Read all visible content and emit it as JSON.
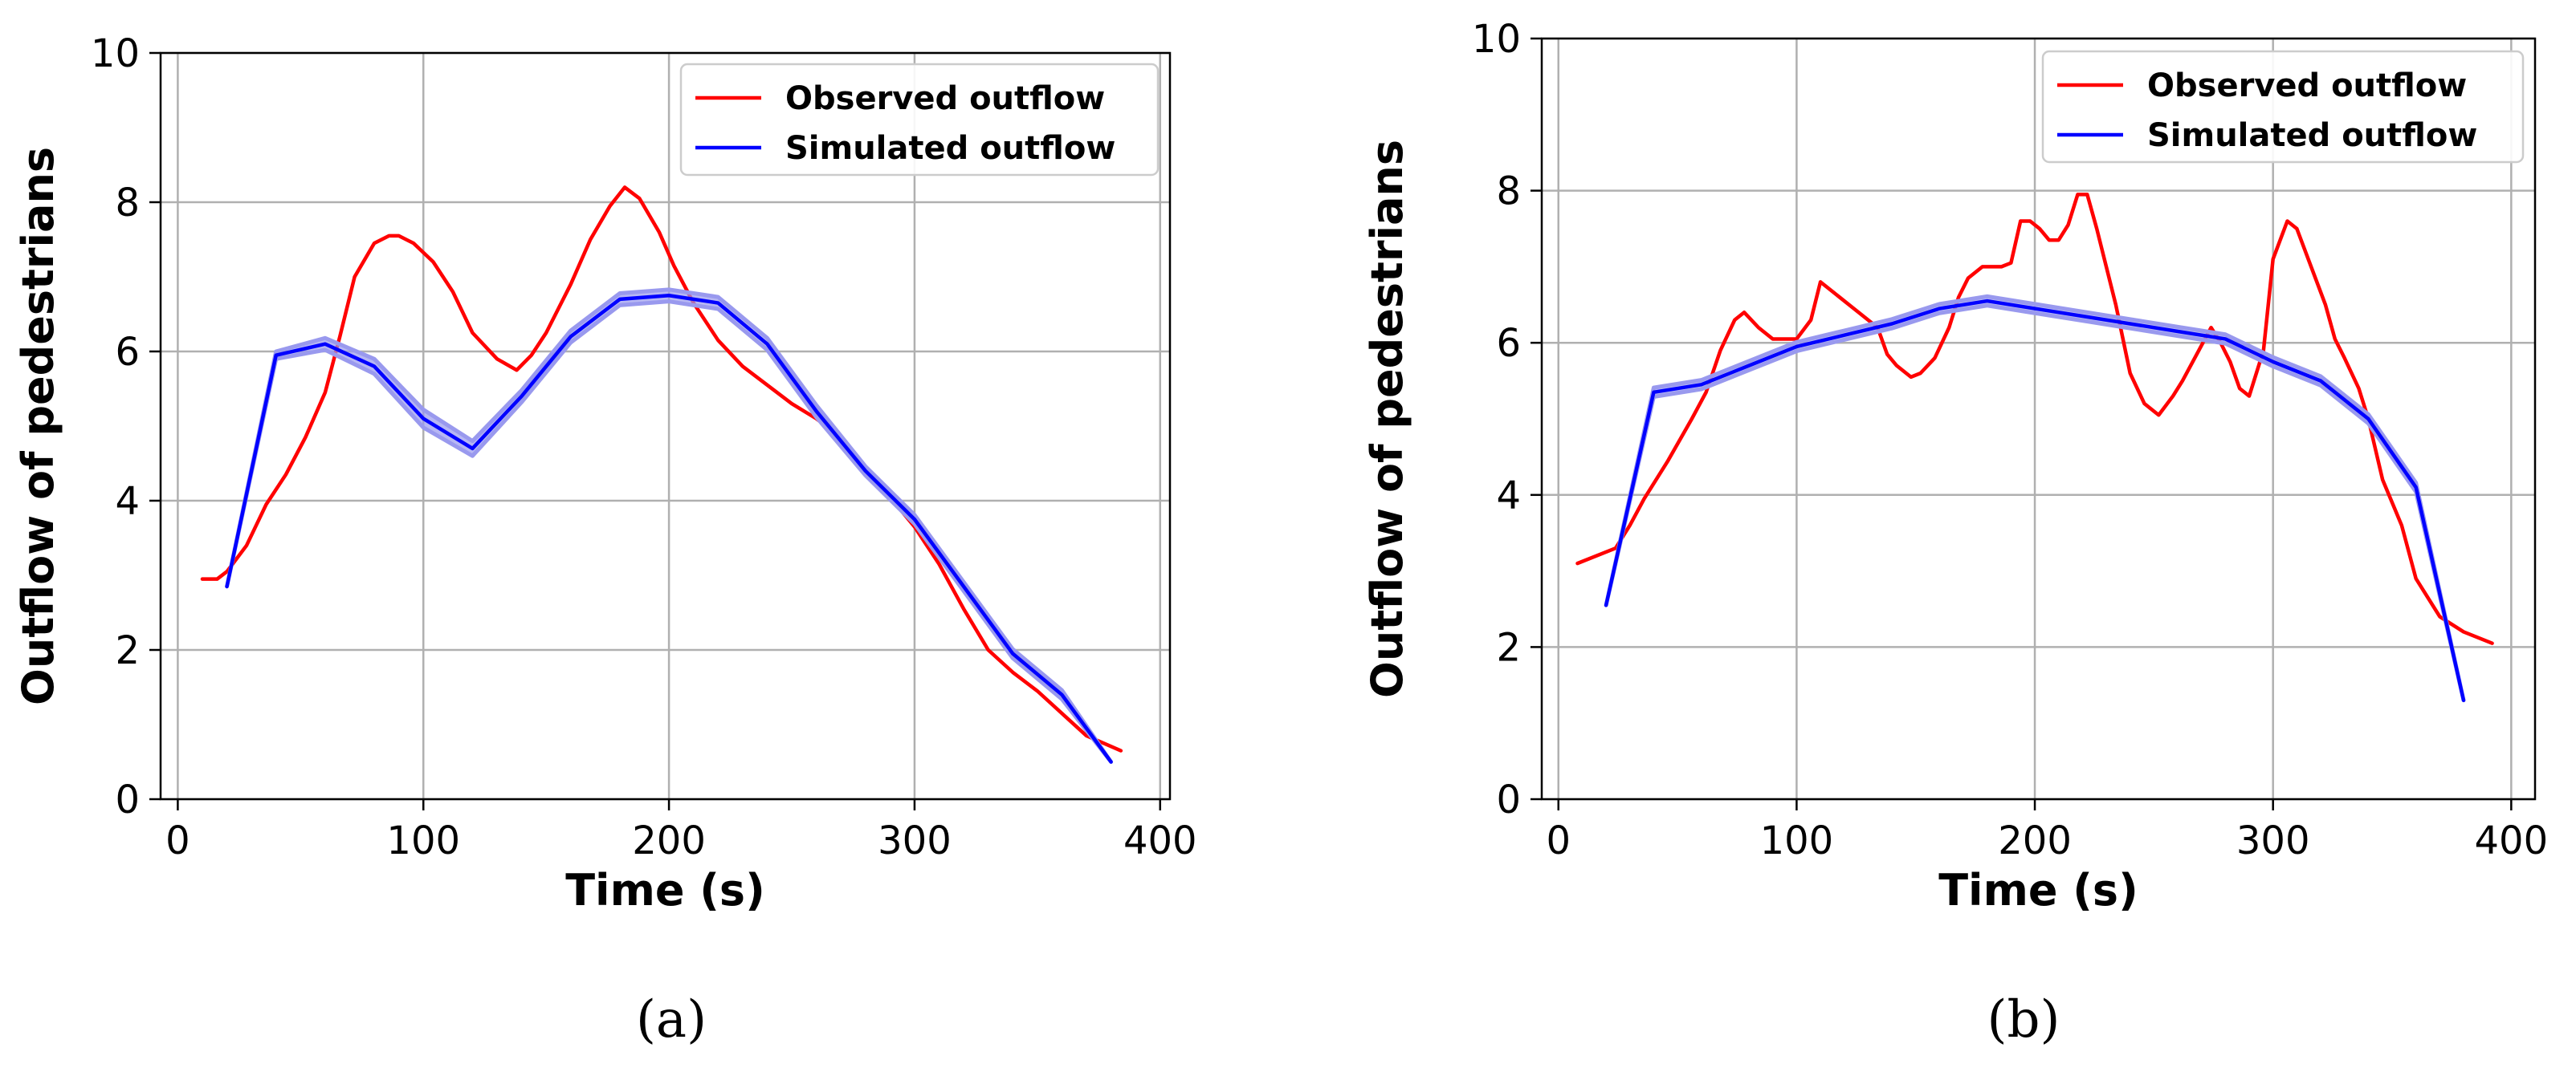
{
  "figure": {
    "panels": [
      "(a)",
      "(b)"
    ]
  },
  "chart_data": [
    {
      "type": "line",
      "panel": "(a)",
      "xlabel": "Time (s)",
      "ylabel": "Outflow of pedestrians",
      "xlim": [
        -7,
        404
      ],
      "ylim": [
        0,
        10
      ],
      "xticks": [
        0,
        100,
        200,
        300,
        400
      ],
      "yticks": [
        0,
        2,
        4,
        6,
        8,
        10
      ],
      "grid": true,
      "legend": "top-right",
      "series": [
        {
          "name": "Observed outflow",
          "color": "#ff0000",
          "x": [
            10,
            16,
            20,
            28,
            36,
            44,
            52,
            60,
            66,
            72,
            80,
            86,
            90,
            96,
            104,
            112,
            120,
            130,
            138,
            144,
            150,
            160,
            168,
            176,
            182,
            188,
            196,
            202,
            210,
            220,
            230,
            240,
            250,
            260,
            270,
            280,
            290,
            300,
            310,
            320,
            330,
            340,
            350,
            360,
            370,
            384
          ],
          "y": [
            2.95,
            2.95,
            3.05,
            3.4,
            3.95,
            4.35,
            4.85,
            5.45,
            6.2,
            7.0,
            7.45,
            7.55,
            7.55,
            7.45,
            7.2,
            6.8,
            6.25,
            5.9,
            5.75,
            5.95,
            6.25,
            6.9,
            7.5,
            7.95,
            8.2,
            8.05,
            7.6,
            7.15,
            6.65,
            6.15,
            5.8,
            5.55,
            5.3,
            5.1,
            4.85,
            4.45,
            4.05,
            3.65,
            3.15,
            2.55,
            2.0,
            1.7,
            1.45,
            1.15,
            0.85,
            0.65
          ]
        },
        {
          "name": "Simulated outflow",
          "color": "#0000ff",
          "band_color": "#9999ee",
          "x": [
            20,
            40,
            60,
            80,
            100,
            120,
            140,
            160,
            180,
            200,
            220,
            240,
            260,
            280,
            300,
            320,
            340,
            360,
            380
          ],
          "y": [
            2.85,
            5.95,
            6.1,
            5.8,
            5.1,
            4.7,
            5.4,
            6.2,
            6.7,
            6.75,
            6.65,
            6.1,
            5.2,
            4.4,
            3.75,
            2.85,
            1.95,
            1.4,
            0.5
          ],
          "band": [
            0.0,
            0.05,
            0.08,
            0.1,
            0.12,
            0.1,
            0.08,
            0.08,
            0.08,
            0.08,
            0.08,
            0.08,
            0.08,
            0.06,
            0.06,
            0.06,
            0.06,
            0.06,
            0.0
          ]
        }
      ]
    },
    {
      "type": "line",
      "panel": "(b)",
      "xlabel": "Time (s)",
      "ylabel": "Outflow of pedestrians",
      "xlim": [
        -7,
        410
      ],
      "ylim": [
        0,
        10
      ],
      "xticks": [
        0,
        100,
        200,
        300,
        400
      ],
      "yticks": [
        0,
        2,
        4,
        6,
        8,
        10
      ],
      "grid": true,
      "legend": "top-right",
      "series": [
        {
          "name": "Observed outflow",
          "color": "#ff0000",
          "x": [
            8,
            24,
            30,
            36,
            46,
            56,
            62,
            68,
            74,
            78,
            84,
            90,
            100,
            106,
            110,
            118,
            126,
            134,
            138,
            142,
            148,
            152,
            158,
            164,
            168,
            172,
            178,
            186,
            190,
            194,
            198,
            202,
            206,
            210,
            214,
            218,
            222,
            226,
            230,
            234,
            240,
            246,
            252,
            258,
            262,
            268,
            274,
            278,
            282,
            286,
            290,
            296,
            300,
            306,
            310,
            316,
            322,
            326,
            330,
            336,
            340,
            346,
            354,
            360,
            370,
            380,
            392
          ],
          "y": [
            3.1,
            3.3,
            3.6,
            3.95,
            4.45,
            5.0,
            5.35,
            5.9,
            6.3,
            6.4,
            6.2,
            6.05,
            6.05,
            6.3,
            6.8,
            6.6,
            6.4,
            6.2,
            5.85,
            5.7,
            5.55,
            5.6,
            5.8,
            6.2,
            6.6,
            6.85,
            7.0,
            7.0,
            7.05,
            7.6,
            7.6,
            7.5,
            7.35,
            7.35,
            7.55,
            7.95,
            7.95,
            7.5,
            7.0,
            6.5,
            5.6,
            5.2,
            5.05,
            5.3,
            5.5,
            5.85,
            6.2,
            6.0,
            5.75,
            5.4,
            5.3,
            5.9,
            7.1,
            7.6,
            7.5,
            7.0,
            6.5,
            6.05,
            5.8,
            5.4,
            5.0,
            4.2,
            3.6,
            2.9,
            2.4,
            2.2,
            2.05
          ]
        },
        {
          "name": "Simulated outflow",
          "color": "#0000ff",
          "band_color": "#9999ee",
          "x": [
            20,
            40,
            60,
            80,
            100,
            120,
            140,
            160,
            180,
            200,
            220,
            240,
            260,
            280,
            300,
            320,
            340,
            360,
            380
          ],
          "y": [
            2.55,
            5.35,
            5.45,
            5.7,
            5.95,
            6.1,
            6.25,
            6.45,
            6.55,
            6.45,
            6.35,
            6.25,
            6.15,
            6.05,
            5.75,
            5.5,
            5.0,
            4.1,
            1.3
          ],
          "band": [
            0.0,
            0.06,
            0.06,
            0.06,
            0.06,
            0.06,
            0.06,
            0.06,
            0.06,
            0.06,
            0.06,
            0.06,
            0.06,
            0.06,
            0.06,
            0.06,
            0.06,
            0.06,
            0.0
          ]
        }
      ]
    }
  ]
}
